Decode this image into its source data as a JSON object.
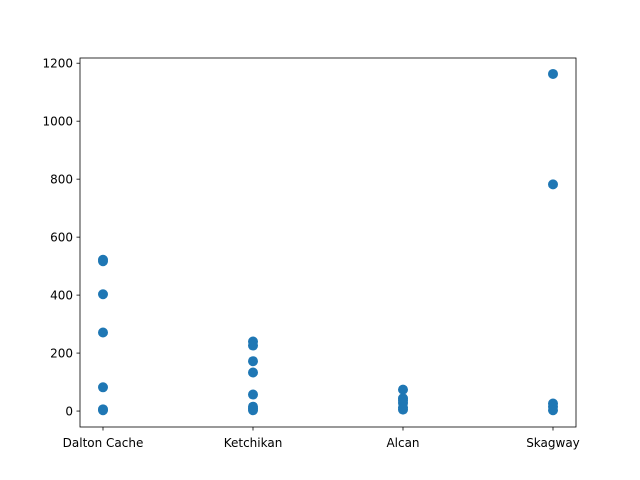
{
  "chart_data": {
    "type": "scatter",
    "title": "",
    "xlabel": "",
    "ylabel": "",
    "categories": [
      "Dalton Cache",
      "Ketchikan",
      "Alcan",
      "Skagway"
    ],
    "ylim": [
      -55,
      1218
    ],
    "yticks": [
      "0",
      "200",
      "400",
      "600",
      "800",
      "1000",
      "1200"
    ],
    "grid": false,
    "marker_color": "#1f77b4",
    "series": [
      {
        "points": [
          {
            "category": "Dalton Cache",
            "y": 522
          },
          {
            "category": "Dalton Cache",
            "y": 517
          },
          {
            "category": "Dalton Cache",
            "y": 403
          },
          {
            "category": "Dalton Cache",
            "y": 271
          },
          {
            "category": "Dalton Cache",
            "y": 82
          },
          {
            "category": "Dalton Cache",
            "y": 6
          },
          {
            "category": "Dalton Cache",
            "y": 3
          },
          {
            "category": "Ketchikan",
            "y": 240
          },
          {
            "category": "Ketchikan",
            "y": 226
          },
          {
            "category": "Ketchikan",
            "y": 172
          },
          {
            "category": "Ketchikan",
            "y": 133
          },
          {
            "category": "Ketchikan",
            "y": 57
          },
          {
            "category": "Ketchikan",
            "y": 15
          },
          {
            "category": "Ketchikan",
            "y": 8
          },
          {
            "category": "Ketchikan",
            "y": 3
          },
          {
            "category": "Alcan",
            "y": 74
          },
          {
            "category": "Alcan",
            "y": 44
          },
          {
            "category": "Alcan",
            "y": 37
          },
          {
            "category": "Alcan",
            "y": 28
          },
          {
            "category": "Alcan",
            "y": 12
          },
          {
            "category": "Alcan",
            "y": 5
          },
          {
            "category": "Skagway",
            "y": 1163
          },
          {
            "category": "Skagway",
            "y": 782
          },
          {
            "category": "Skagway",
            "y": 26
          },
          {
            "category": "Skagway",
            "y": 15
          },
          {
            "category": "Skagway",
            "y": 3
          }
        ]
      }
    ]
  }
}
